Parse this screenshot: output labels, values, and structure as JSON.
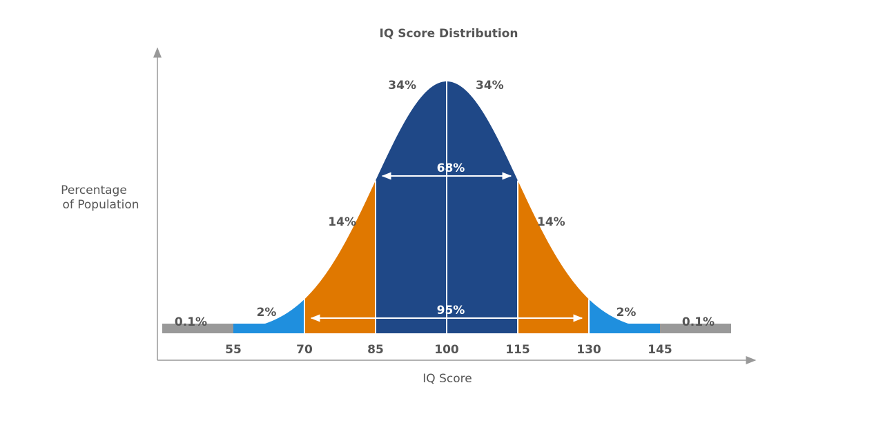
{
  "chart_data": {
    "type": "area",
    "title": "IQ Score Distribution",
    "xlabel": "IQ Score",
    "ylabel": [
      "Percentage",
      "of Population"
    ],
    "distribution": {
      "mean": 100,
      "sd": 15
    },
    "xlim": [
      40,
      160
    ],
    "ticks": [
      "55",
      "70",
      "85",
      "100",
      "115",
      "130",
      "145"
    ],
    "tick_values": [
      55,
      70,
      85,
      100,
      115,
      130,
      145
    ],
    "regions": [
      {
        "from": 40,
        "to": 55,
        "label": "0.1%",
        "color": "#999999"
      },
      {
        "from": 55,
        "to": 70,
        "label": "2%",
        "color": "#1f8fde"
      },
      {
        "from": 70,
        "to": 85,
        "label": "14%",
        "color": "#e07800"
      },
      {
        "from": 85,
        "to": 100,
        "label": "34%",
        "color": "#1f4887"
      },
      {
        "from": 100,
        "to": 115,
        "label": "34%",
        "color": "#1f4887"
      },
      {
        "from": 115,
        "to": 130,
        "label": "14%",
        "color": "#e07800"
      },
      {
        "from": 130,
        "to": 145,
        "label": "2%",
        "color": "#1f8fde"
      },
      {
        "from": 145,
        "to": 160,
        "label": "0.1%",
        "color": "#999999"
      }
    ],
    "spans": [
      {
        "from": 85,
        "to": 115,
        "label": "68%"
      },
      {
        "from": 70,
        "to": 130,
        "label": "95%"
      }
    ],
    "grid": false
  }
}
